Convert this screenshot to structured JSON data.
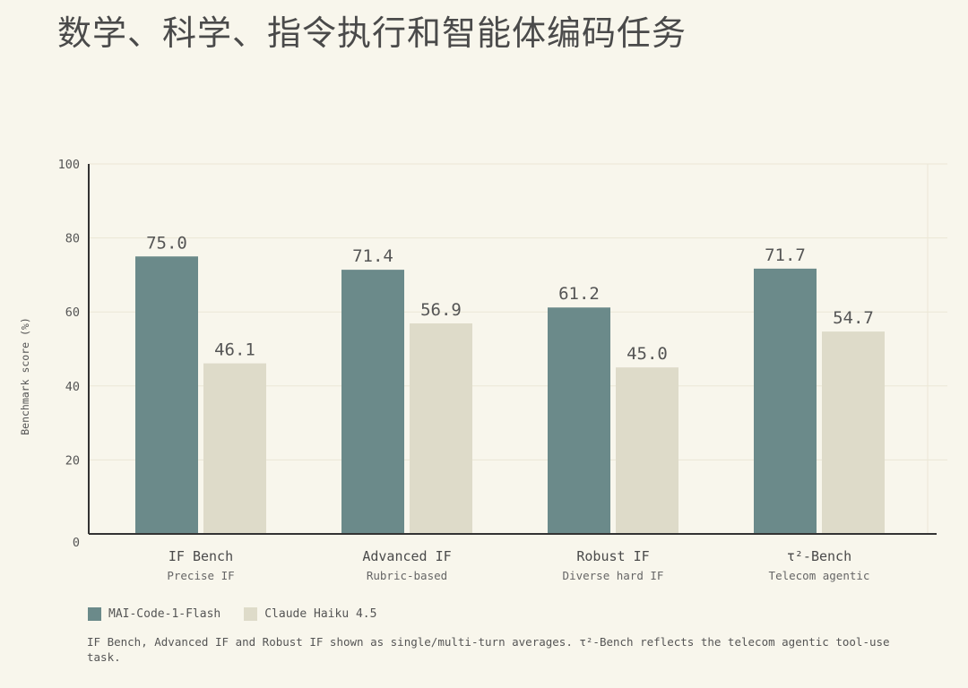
{
  "page": {
    "title": "数学、科学、指令执行和智能体编码任务"
  },
  "chart_data": {
    "type": "bar",
    "title": "",
    "xlabel": "",
    "ylabel": "Benchmark score (%)",
    "ylim": [
      0,
      100
    ],
    "yticks": [
      0,
      20,
      40,
      60,
      80,
      100
    ],
    "grid": true,
    "legend_position": "bottom-left",
    "categories": [
      "IF Bench",
      "Advanced IF",
      "Robust IF",
      "τ²-Bench"
    ],
    "subcategories": [
      "Precise IF",
      "Rubric-based",
      "Diverse hard IF",
      "Telecom agentic"
    ],
    "series": [
      {
        "name": "MAI-Code-1-Flash",
        "color": "#6b8a8a",
        "values": [
          75.0,
          71.4,
          61.2,
          71.7
        ]
      },
      {
        "name": "Claude Haiku 4.5",
        "color": "#dedbc9",
        "values": [
          46.1,
          56.9,
          45.0,
          54.7
        ]
      }
    ],
    "value_labels": [
      [
        "75.0",
        "71.4",
        "61.2",
        "71.7"
      ],
      [
        "46.1",
        "56.9",
        "45.0",
        "54.7"
      ]
    ]
  },
  "footnote": "IF Bench, Advanced IF and Robust IF shown as single/multi-turn averages.  τ²-Bench reflects the telecom agentic tool-use task.",
  "colors": {
    "background": "#f8f6ec",
    "grid": "#ebe7d6",
    "axis": "#333333",
    "text": "#555555"
  }
}
